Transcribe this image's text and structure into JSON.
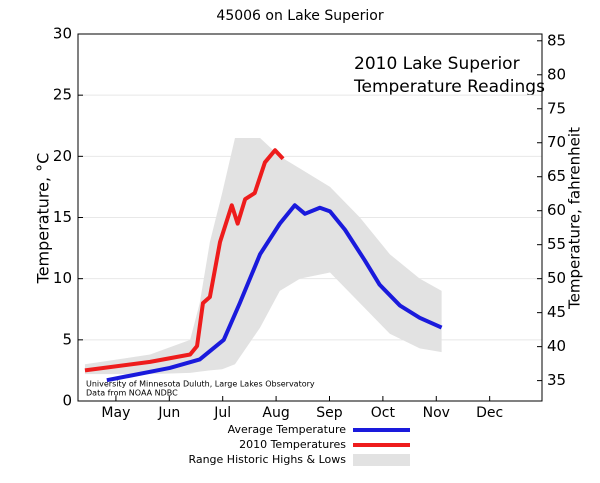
{
  "chart_data": {
    "type": "line",
    "title": "45006 on Lake Superior",
    "ylabel": "Temperature, °C",
    "y2label": "Temperature, fahrenheit",
    "annotations": [
      "2010 Lake Superior",
      "Temperature Readings",
      "University of Minnesota Duluth, Large Lakes Observatory",
      "Data from NOAA NDBC"
    ],
    "xlim": [
      4.29,
      12.98
    ],
    "xticks": [
      {
        "value": 5,
        "label": "May"
      },
      {
        "value": 6,
        "label": "Jun"
      },
      {
        "value": 7,
        "label": "Jul"
      },
      {
        "value": 8,
        "label": "Aug"
      },
      {
        "value": 9,
        "label": "Sep"
      },
      {
        "value": 10,
        "label": "Oct"
      },
      {
        "value": 11,
        "label": "Nov"
      },
      {
        "value": 12,
        "label": "Dec"
      }
    ],
    "ylim": [
      0,
      30
    ],
    "yticks": [
      0,
      5,
      10,
      15,
      20,
      25,
      30
    ],
    "y2lim": [
      32,
      86
    ],
    "y2ticks": [
      35,
      40,
      45,
      50,
      55,
      60,
      65,
      70,
      75,
      80,
      85
    ],
    "grid": true,
    "series": [
      {
        "name": "Average Temperature",
        "color": "#1a1adc",
        "x": [
          4.83,
          6.01,
          6.57,
          7.02,
          7.32,
          7.7,
          8.07,
          8.35,
          8.54,
          8.82,
          9.01,
          9.29,
          9.66,
          9.94,
          10.32,
          10.69,
          11.1
        ],
        "values": [
          1.7,
          2.7,
          3.4,
          5,
          8,
          12,
          14.5,
          16,
          15.3,
          15.8,
          15.5,
          14,
          11.5,
          9.5,
          7.8,
          6.8,
          6
        ]
      },
      {
        "name": "2010 Temperatures",
        "color": "#ee1c1c",
        "x": [
          4.42,
          5.64,
          6.39,
          6.52,
          6.63,
          6.76,
          6.95,
          7.17,
          7.28,
          7.42,
          7.6,
          7.79,
          7.98,
          8.13
        ],
        "values": [
          2.5,
          3.2,
          3.8,
          4.5,
          8,
          8.5,
          13,
          16,
          14.5,
          16.5,
          17,
          19.5,
          20.5,
          19.8
        ]
      }
    ],
    "band": {
      "name": "Range Historic Highs & Lows",
      "color": "#e2e2e2",
      "x": [
        4.42,
        5.64,
        6.39,
        6.57,
        6.76,
        6.99,
        7.23,
        7.7,
        8.07,
        8.45,
        9.01,
        9.57,
        10.13,
        10.69,
        11.1
      ],
      "high": [
        3,
        3.8,
        5,
        8,
        13,
        17,
        21.5,
        21.5,
        20,
        19,
        17.5,
        15,
        12,
        10,
        9
      ],
      "low": [
        2.2,
        2.2,
        2.3,
        2.4,
        2.5,
        2.6,
        3,
        6,
        9,
        10,
        10.5,
        8,
        5.5,
        4.3,
        4
      ]
    }
  }
}
